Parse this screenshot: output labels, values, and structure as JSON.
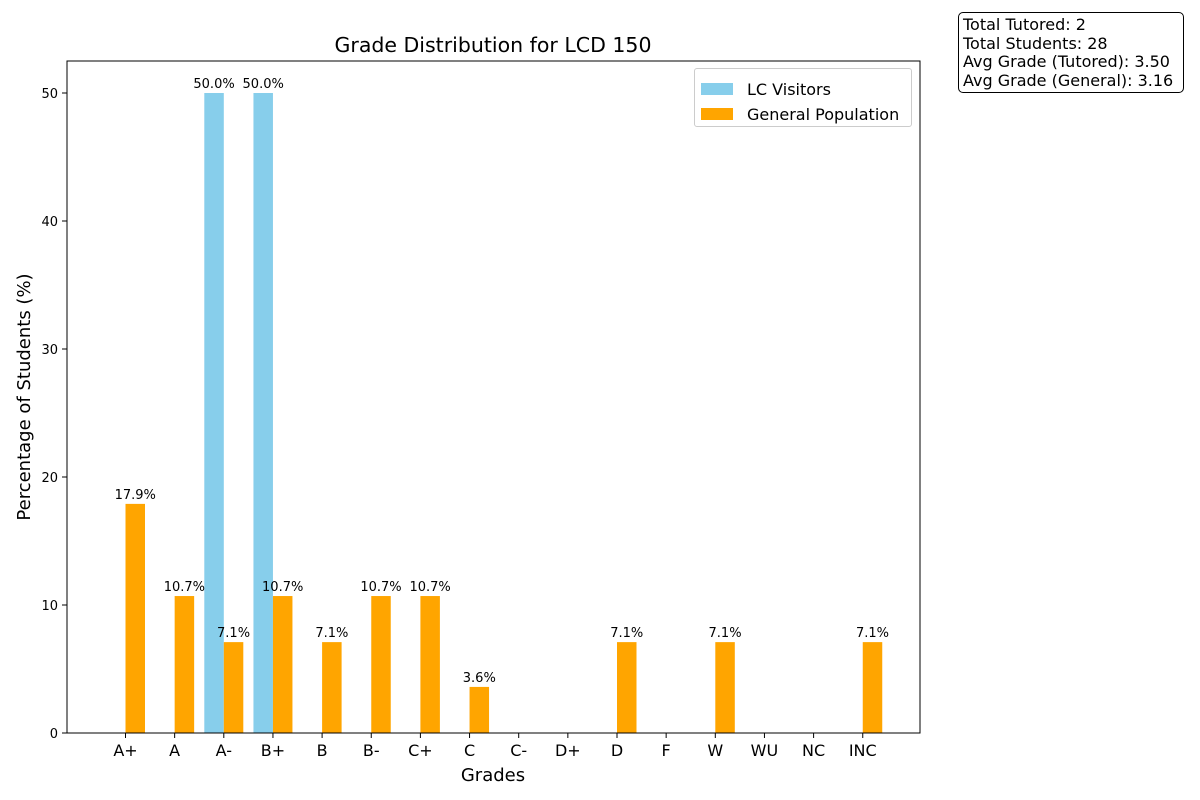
{
  "stats": {
    "total_tutored": "Total Tutored: 2",
    "total_students": "Total Students: 28",
    "avg_tutored": "Avg Grade (Tutored): 3.50",
    "avg_general": "Avg Grade (General): 3.16"
  },
  "chart_data": {
    "type": "bar",
    "title": "Grade Distribution for LCD 150",
    "xlabel": "Grades",
    "ylabel": "Percentage of Students (%)",
    "ylim": [
      0,
      52.5
    ],
    "yticks": [
      0,
      10,
      20,
      30,
      40,
      50
    ],
    "grid": false,
    "legend_position": "top-right",
    "categories": [
      "A+",
      "A",
      "A-",
      "B+",
      "B",
      "B-",
      "C+",
      "C",
      "C-",
      "D+",
      "D",
      "F",
      "W",
      "WU",
      "NC",
      "INC"
    ],
    "series": [
      {
        "name": "LC Visitors",
        "color": "#87ceeb",
        "values": [
          0,
          0,
          50.0,
          50.0,
          0,
          0,
          0,
          0,
          0,
          0,
          0,
          0,
          0,
          0,
          0,
          0
        ],
        "labels": [
          "",
          "",
          "50.0%",
          "50.0%",
          "",
          "",
          "",
          "",
          "",
          "",
          "",
          "",
          "",
          "",
          "",
          ""
        ]
      },
      {
        "name": "General Population",
        "color": "#ffa500",
        "values": [
          17.9,
          10.7,
          7.1,
          10.7,
          7.1,
          10.7,
          10.7,
          3.6,
          0,
          0,
          7.1,
          0,
          7.1,
          0,
          0,
          7.1
        ],
        "labels": [
          "17.9%",
          "10.7%",
          "7.1%",
          "10.7%",
          "7.1%",
          "10.7%",
          "10.7%",
          "3.6%",
          "",
          "",
          "7.1%",
          "",
          "7.1%",
          "",
          "",
          "7.1%"
        ]
      }
    ]
  }
}
